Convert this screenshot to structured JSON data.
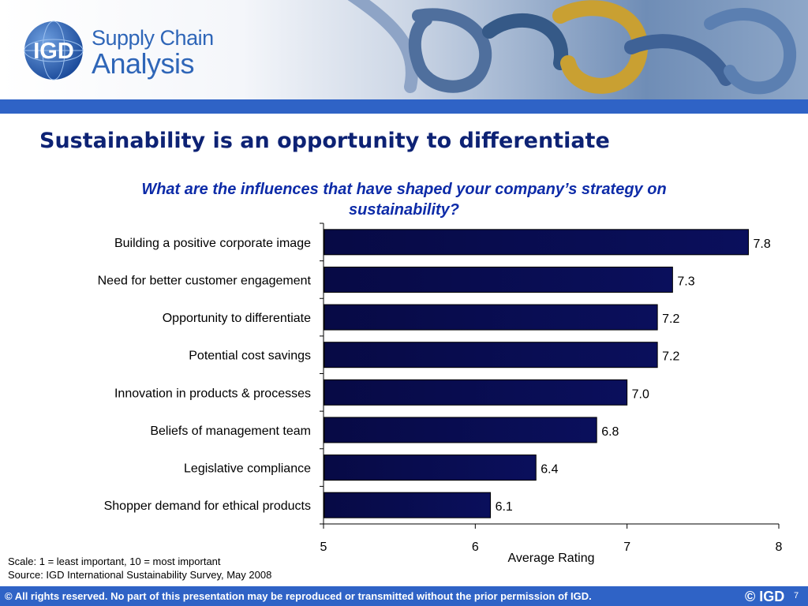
{
  "logo": {
    "mark": "IGD",
    "line1": "Supply Chain",
    "line2": "Analysis"
  },
  "title": "Sustainability is an opportunity to differentiate",
  "subtitle": "What are the influences that have shaped your company’s strategy on sustainability?",
  "chart_data": {
    "type": "bar",
    "orientation": "horizontal",
    "categories": [
      "Building a positive corporate image",
      "Need for better customer engagement",
      "Opportunity to differentiate",
      "Potential cost savings",
      "Innovation in products & processes",
      "Beliefs of management team",
      "Legislative compliance",
      "Shopper demand for ethical products"
    ],
    "values": [
      7.8,
      7.3,
      7.2,
      7.2,
      7.0,
      6.8,
      6.4,
      6.1
    ],
    "data_labels": [
      "7.8",
      "7.3",
      "7.2",
      "7.2",
      "7.0",
      "6.8",
      "6.4",
      "6.1"
    ],
    "xlim": [
      5,
      8
    ],
    "xticks": [
      5,
      6,
      7,
      8
    ],
    "xlabel": "Average Rating",
    "ylabel": "",
    "grid": false,
    "legend": "none",
    "bar_color": "#0a0f5c"
  },
  "notes": {
    "scale": "Scale: 1 = least important, 10 = most important",
    "source": "Source: IGD International Sustainability Survey, May 2008"
  },
  "footer": {
    "rights": "© All rights reserved. No part of this presentation may be reproduced or transmitted without the prior permission of IGD.",
    "copyright": "© IGD",
    "page": "7"
  },
  "colors": {
    "brand_blue": "#2f63c6",
    "title_navy": "#0d2274",
    "subtitle_blue": "#0d2ba8"
  }
}
